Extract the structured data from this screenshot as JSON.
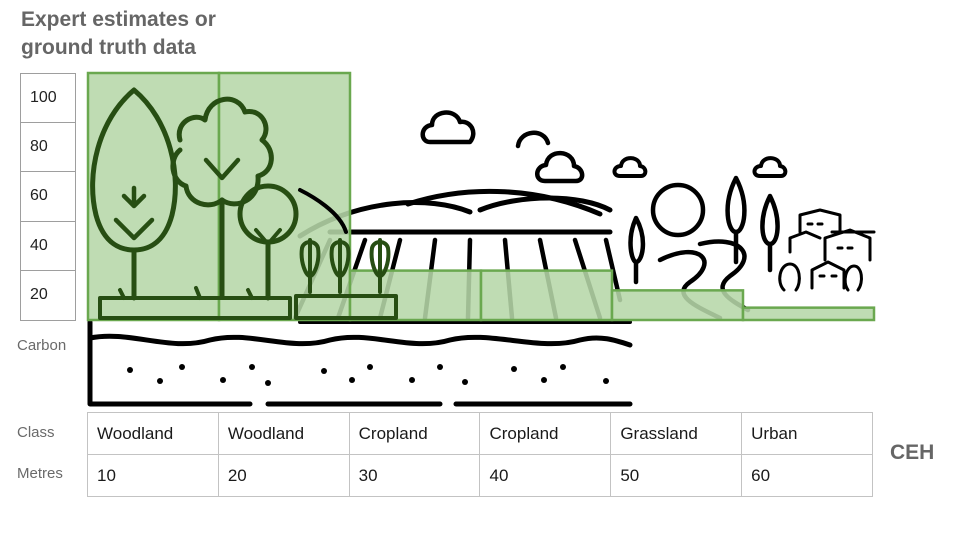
{
  "heading": {
    "line1": "Expert estimates or",
    "line2": "ground truth data"
  },
  "scale": {
    "ticks": [
      "100",
      "80",
      "60",
      "40",
      "20"
    ]
  },
  "labels": {
    "carbon": "Carbon",
    "class": "Class",
    "metres": "Metres"
  },
  "brand": "CEH",
  "colors": {
    "bar_fill": "#b6d7a8",
    "bar_stroke": "#6aa84f",
    "icon": "#000000",
    "icon_on_green": "#274e13"
  },
  "icons": [
    "woodland-trees-icon",
    "wheat-icon",
    "ploughed-field-icon",
    "hills-icon",
    "cloud-icon",
    "river-icon",
    "village-icon",
    "soil-icon"
  ],
  "chart_data": {
    "type": "bar",
    "categories": [
      "10",
      "20",
      "30",
      "40",
      "50",
      "60"
    ],
    "classes": [
      "Woodland",
      "Woodland",
      "Cropland",
      "Cropland",
      "Grassland",
      "Urban"
    ],
    "values": [
      100,
      100,
      20,
      20,
      12,
      5
    ],
    "ylim": [
      0,
      100
    ],
    "ticks": [
      100,
      80,
      60,
      40,
      20
    ]
  },
  "rows": [
    {
      "class": "Woodland",
      "metres": "10"
    },
    {
      "class": "Woodland",
      "metres": "20"
    },
    {
      "class": "Cropland",
      "metres": "30"
    },
    {
      "class": "Cropland",
      "metres": "40"
    },
    {
      "class": "Grassland",
      "metres": "50"
    },
    {
      "class": "Urban",
      "metres": "60"
    }
  ]
}
